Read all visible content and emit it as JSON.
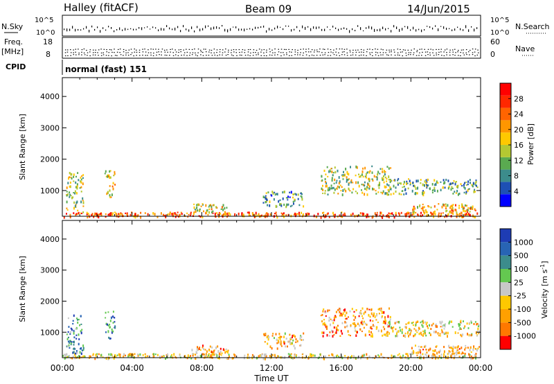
{
  "header": {
    "station": "Halley (fitACF)",
    "beam": "Beam 09",
    "date": "14/Jun/2015"
  },
  "params": {
    "nsky_label": "N.Sky",
    "nsky_ticks": [
      "10^5",
      "10^0"
    ],
    "nsearch_label": "N.Search",
    "nsearch_ticks": [
      "10^5",
      "10^0"
    ],
    "freq_label": "Freq.",
    "freq_unit": "[MHz]",
    "freq_ticks": [
      "18",
      "8"
    ],
    "nave_label": "Nave",
    "nave_ticks": [
      "60",
      "0"
    ],
    "cpid_label": "CPID",
    "cpid_value": "normal (fast) 151"
  },
  "colors": {
    "power_scale": [
      "#0000ff",
      "#1e50b4",
      "#3c8c8c",
      "#5aaa50",
      "#b4c832",
      "#ffc800",
      "#ff9600",
      "#ff6400",
      "#ff2800",
      "#ff0000"
    ],
    "velocity_scale": [
      "#1e3cb4",
      "#2864b4",
      "#3c8c8c",
      "#64c850",
      "#c8c8c8",
      "#ffc800",
      "#ffa000",
      "#ff7800",
      "#ff0000"
    ]
  },
  "chart_data": [
    {
      "type": "heatmap",
      "title": "",
      "quantity": "Power",
      "ylabel": "Slant Range [km]",
      "ylim": [
        180,
        4600
      ],
      "yticks": [
        1000,
        2000,
        3000,
        4000
      ],
      "xlim": [
        0,
        24
      ],
      "colorbar_label": "Power [dB]",
      "colorbar_ticks": [
        4,
        8,
        12,
        16,
        20,
        24,
        28
      ],
      "colorbar_range": [
        0,
        32
      ],
      "echo_regions": [
        {
          "t0": 0.0,
          "t1": 23.9,
          "r0": 180,
          "r1": 330,
          "level": 0.75
        },
        {
          "t0": 0.2,
          "t1": 1.2,
          "r0": 330,
          "r1": 1600,
          "level": 0.45
        },
        {
          "t0": 2.4,
          "t1": 3.0,
          "r0": 800,
          "r1": 1700,
          "level": 0.55
        },
        {
          "t0": 7.4,
          "t1": 9.5,
          "r0": 330,
          "r1": 600,
          "level": 0.5
        },
        {
          "t0": 11.5,
          "t1": 13.8,
          "r0": 500,
          "r1": 1000,
          "level": 0.3
        },
        {
          "t0": 14.8,
          "t1": 18.8,
          "r0": 900,
          "r1": 1800,
          "level": 0.45
        },
        {
          "t0": 18.5,
          "t1": 23.9,
          "r0": 900,
          "r1": 1400,
          "level": 0.35
        },
        {
          "t0": 20.0,
          "t1": 23.9,
          "r0": 330,
          "r1": 600,
          "level": 0.6
        }
      ]
    },
    {
      "type": "heatmap",
      "title": "",
      "quantity": "Velocity",
      "ylabel": "Slant Range [km]",
      "ylim": [
        180,
        4600
      ],
      "yticks": [
        1000,
        2000,
        3000,
        4000
      ],
      "xlim": [
        0,
        24
      ],
      "xlabel": "Time UT",
      "xticks": [
        "00:00",
        "04:00",
        "08:00",
        "12:00",
        "16:00",
        "20:00",
        "00:00"
      ],
      "colorbar_label": "Velocity [m s^-1]",
      "colorbar_ticks": [
        1000,
        500,
        100,
        25,
        -25,
        -100,
        -500,
        -1000
      ],
      "echo_regions": [
        {
          "t0": 0.0,
          "t1": 23.9,
          "r0": 180,
          "r1": 330,
          "level": 0.6
        },
        {
          "t0": 0.2,
          "t1": 1.2,
          "r0": 330,
          "r1": 1600,
          "level": 0.25
        },
        {
          "t0": 2.4,
          "t1": 3.0,
          "r0": 800,
          "r1": 1700,
          "level": 0.2
        },
        {
          "t0": 7.4,
          "t1": 9.5,
          "r0": 330,
          "r1": 600,
          "level": 0.7
        },
        {
          "t0": 11.5,
          "t1": 13.8,
          "r0": 500,
          "r1": 1000,
          "level": 0.65
        },
        {
          "t0": 14.8,
          "t1": 18.8,
          "r0": 900,
          "r1": 1800,
          "level": 0.72
        },
        {
          "t0": 18.5,
          "t1": 23.9,
          "r0": 900,
          "r1": 1400,
          "level": 0.6
        },
        {
          "t0": 20.0,
          "t1": 23.9,
          "r0": 330,
          "r1": 600,
          "level": 0.7
        }
      ]
    }
  ]
}
